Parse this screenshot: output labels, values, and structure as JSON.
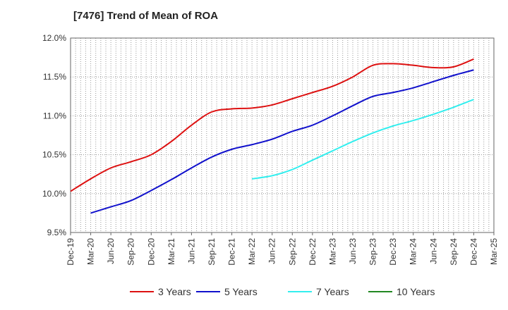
{
  "chart_data": {
    "type": "line",
    "title": "[7476]  Trend of Mean of ROA",
    "x_categories": [
      "Dec-19",
      "Mar-20",
      "Jun-20",
      "Sep-20",
      "Dec-20",
      "Mar-21",
      "Jun-21",
      "Sep-21",
      "Dec-21",
      "Mar-22",
      "Jun-22",
      "Sep-22",
      "Dec-22",
      "Mar-23",
      "Jun-23",
      "Sep-23",
      "Dec-23",
      "Mar-24",
      "Jun-24",
      "Sep-24",
      "Dec-24",
      "Mar-25"
    ],
    "ylim": [
      9.5,
      12.0
    ],
    "yticks": [
      "9.5%",
      "10.0%",
      "10.5%",
      "11.0%",
      "11.5%",
      "12.0%"
    ],
    "ytick_values": [
      9.5,
      10.0,
      10.5,
      11.0,
      11.5,
      12.0
    ],
    "grid": true,
    "legend_position": "bottom",
    "series": [
      {
        "name": "3 Years",
        "color": "#dd1111",
        "start_index": 0,
        "values": [
          10.03,
          10.19,
          10.33,
          10.41,
          10.5,
          10.67,
          10.88,
          11.05,
          11.09,
          11.1,
          11.14,
          11.22,
          11.3,
          11.38,
          11.5,
          11.65,
          11.67,
          11.65,
          11.62,
          11.63,
          11.73
        ]
      },
      {
        "name": "5 Years",
        "color": "#1111cc",
        "start_index": 1,
        "values": [
          9.75,
          9.83,
          9.91,
          10.04,
          10.18,
          10.33,
          10.47,
          10.57,
          10.63,
          10.7,
          10.8,
          10.88,
          11.0,
          11.13,
          11.25,
          11.3,
          11.36,
          11.44,
          11.52,
          11.59
        ]
      },
      {
        "name": "7 Years",
        "color": "#33eeee",
        "start_index": 9,
        "values": [
          10.19,
          10.23,
          10.31,
          10.43,
          10.55,
          10.67,
          10.78,
          10.87,
          10.94,
          11.02,
          11.11,
          11.21
        ]
      },
      {
        "name": "10 Years",
        "color": "#228822",
        "start_index": 0,
        "values": []
      }
    ]
  }
}
